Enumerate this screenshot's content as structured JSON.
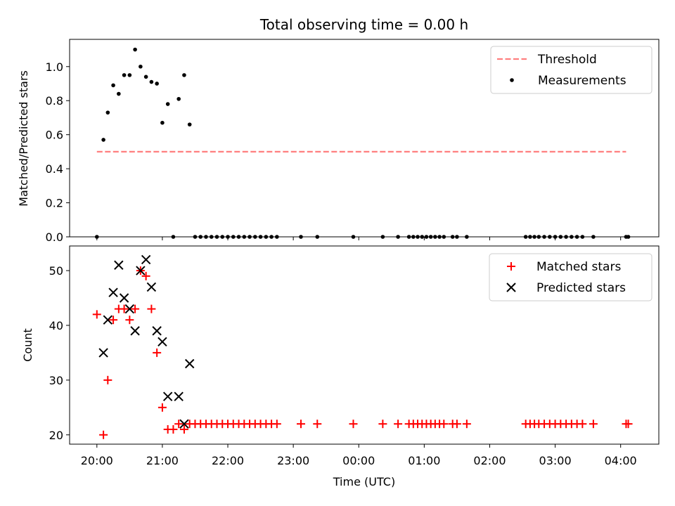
{
  "chart_data": [
    {
      "type": "scatter",
      "title": "Total observing time = 0.00 h",
      "ylabel": "Matched/Predicted stars",
      "xlabel": "",
      "xlim": [
        "19:35",
        "04:35"
      ],
      "ylim": [
        0,
        1.16
      ],
      "yticks": [
        0.0,
        0.2,
        0.4,
        0.6,
        0.8,
        1.0
      ],
      "ytick_labels": [
        "0.0",
        "0.2",
        "0.4",
        "0.6",
        "0.8",
        "1.0"
      ],
      "grid": false,
      "legend": "top-right",
      "series": [
        {
          "name": "Threshold",
          "kind": "line",
          "style": "dashed",
          "color": "#ff7f7f",
          "x": [
            "20:00",
            "04:05"
          ],
          "y": [
            0.5,
            0.5
          ]
        },
        {
          "name": "Measurements",
          "kind": "points",
          "color": "#000000",
          "x": [
            "20:00",
            "20:06",
            "20:10",
            "20:15",
            "20:20",
            "20:25",
            "20:30",
            "20:35",
            "20:40",
            "20:45",
            "20:50",
            "20:55",
            "21:00",
            "21:05",
            "21:10",
            "21:15",
            "21:20",
            "21:25",
            "21:30",
            "21:35",
            "21:40",
            "21:45",
            "21:50",
            "21:55",
            "22:00",
            "22:05",
            "22:10",
            "22:15",
            "22:20",
            "22:25",
            "22:30",
            "22:35",
            "22:40",
            "22:45",
            "23:07",
            "23:22",
            "23:55",
            "00:22",
            "00:36",
            "00:46",
            "00:50",
            "00:54",
            "00:58",
            "01:02",
            "01:06",
            "01:10",
            "01:14",
            "01:18",
            "01:26",
            "01:30",
            "01:39",
            "02:33",
            "02:37",
            "02:41",
            "02:45",
            "02:50",
            "02:55",
            "03:00",
            "03:05",
            "03:10",
            "03:15",
            "03:20",
            "03:25",
            "03:35",
            "04:05",
            "04:07"
          ],
          "y": [
            0.0,
            0.57,
            0.73,
            0.89,
            0.84,
            0.95,
            0.95,
            1.1,
            1.0,
            0.94,
            0.91,
            0.9,
            0.67,
            0.78,
            0.0,
            0.81,
            0.95,
            0.66,
            0.0,
            0.0,
            0.0,
            0.0,
            0.0,
            0.0,
            0.0,
            0.0,
            0.0,
            0.0,
            0.0,
            0.0,
            0.0,
            0.0,
            0.0,
            0.0,
            0.0,
            0.0,
            0.0,
            0.0,
            0.0,
            0.0,
            0.0,
            0.0,
            0.0,
            0.0,
            0.0,
            0.0,
            0.0,
            0.0,
            0.0,
            0.0,
            0.0,
            0.0,
            0.0,
            0.0,
            0.0,
            0.0,
            0.0,
            0.0,
            0.0,
            0.0,
            0.0,
            0.0,
            0.0,
            0.0,
            0.0,
            0.0
          ]
        }
      ]
    },
    {
      "type": "scatter",
      "title": "",
      "ylabel": "Count",
      "xlabel": "Time (UTC)",
      "xlim": [
        "19:35",
        "04:35"
      ],
      "ylim": [
        18.3,
        54.5
      ],
      "xticks": [
        "20:00",
        "21:00",
        "22:00",
        "23:00",
        "00:00",
        "01:00",
        "02:00",
        "03:00",
        "04:00"
      ],
      "xtick_labels": [
        "20:00",
        "21:00",
        "22:00",
        "23:00",
        "00:00",
        "01:00",
        "02:00",
        "03:00",
        "04:00"
      ],
      "yticks": [
        20,
        30,
        40,
        50
      ],
      "ytick_labels": [
        "20",
        "30",
        "40",
        "50"
      ],
      "grid": false,
      "legend": "top-right",
      "series": [
        {
          "name": "Matched stars",
          "kind": "plus",
          "color": "#ff0000",
          "x": [
            "20:00",
            "20:06",
            "20:10",
            "20:15",
            "20:20",
            "20:25",
            "20:30",
            "20:35",
            "20:40",
            "20:45",
            "20:50",
            "20:55",
            "21:00",
            "21:05",
            "21:10",
            "21:15",
            "21:20",
            "21:25",
            "21:30",
            "21:35",
            "21:40",
            "21:45",
            "21:50",
            "21:55",
            "22:00",
            "22:05",
            "22:10",
            "22:15",
            "22:20",
            "22:25",
            "22:30",
            "22:35",
            "22:40",
            "22:45",
            "23:07",
            "23:22",
            "23:55",
            "00:22",
            "00:36",
            "00:46",
            "00:50",
            "00:54",
            "00:58",
            "01:02",
            "01:06",
            "01:10",
            "01:14",
            "01:18",
            "01:26",
            "01:30",
            "01:39",
            "02:33",
            "02:37",
            "02:41",
            "02:45",
            "02:50",
            "02:55",
            "03:00",
            "03:05",
            "03:10",
            "03:15",
            "03:20",
            "03:25",
            "03:35",
            "04:05",
            "04:07"
          ],
          "y": [
            42,
            20,
            30,
            41,
            43,
            43,
            41,
            43,
            50,
            49,
            43,
            35,
            25,
            21,
            21,
            22,
            21,
            22,
            22,
            22,
            22,
            22,
            22,
            22,
            22,
            22,
            22,
            22,
            22,
            22,
            22,
            22,
            22,
            22,
            22,
            22,
            22,
            22,
            22,
            22,
            22,
            22,
            22,
            22,
            22,
            22,
            22,
            22,
            22,
            22,
            22,
            22,
            22,
            22,
            22,
            22,
            22,
            22,
            22,
            22,
            22,
            22,
            22,
            22,
            22,
            22
          ]
        },
        {
          "name": "Predicted stars",
          "kind": "x",
          "color": "#000000",
          "x": [
            "20:06",
            "20:10",
            "20:15",
            "20:20",
            "20:25",
            "20:30",
            "20:35",
            "20:40",
            "20:45",
            "20:50",
            "20:55",
            "21:00",
            "21:05",
            "21:15",
            "21:20",
            "21:25"
          ],
          "y": [
            35,
            41,
            46,
            51,
            45,
            43,
            39,
            50,
            52,
            47,
            39,
            37,
            27,
            27,
            22,
            33
          ]
        }
      ]
    }
  ]
}
